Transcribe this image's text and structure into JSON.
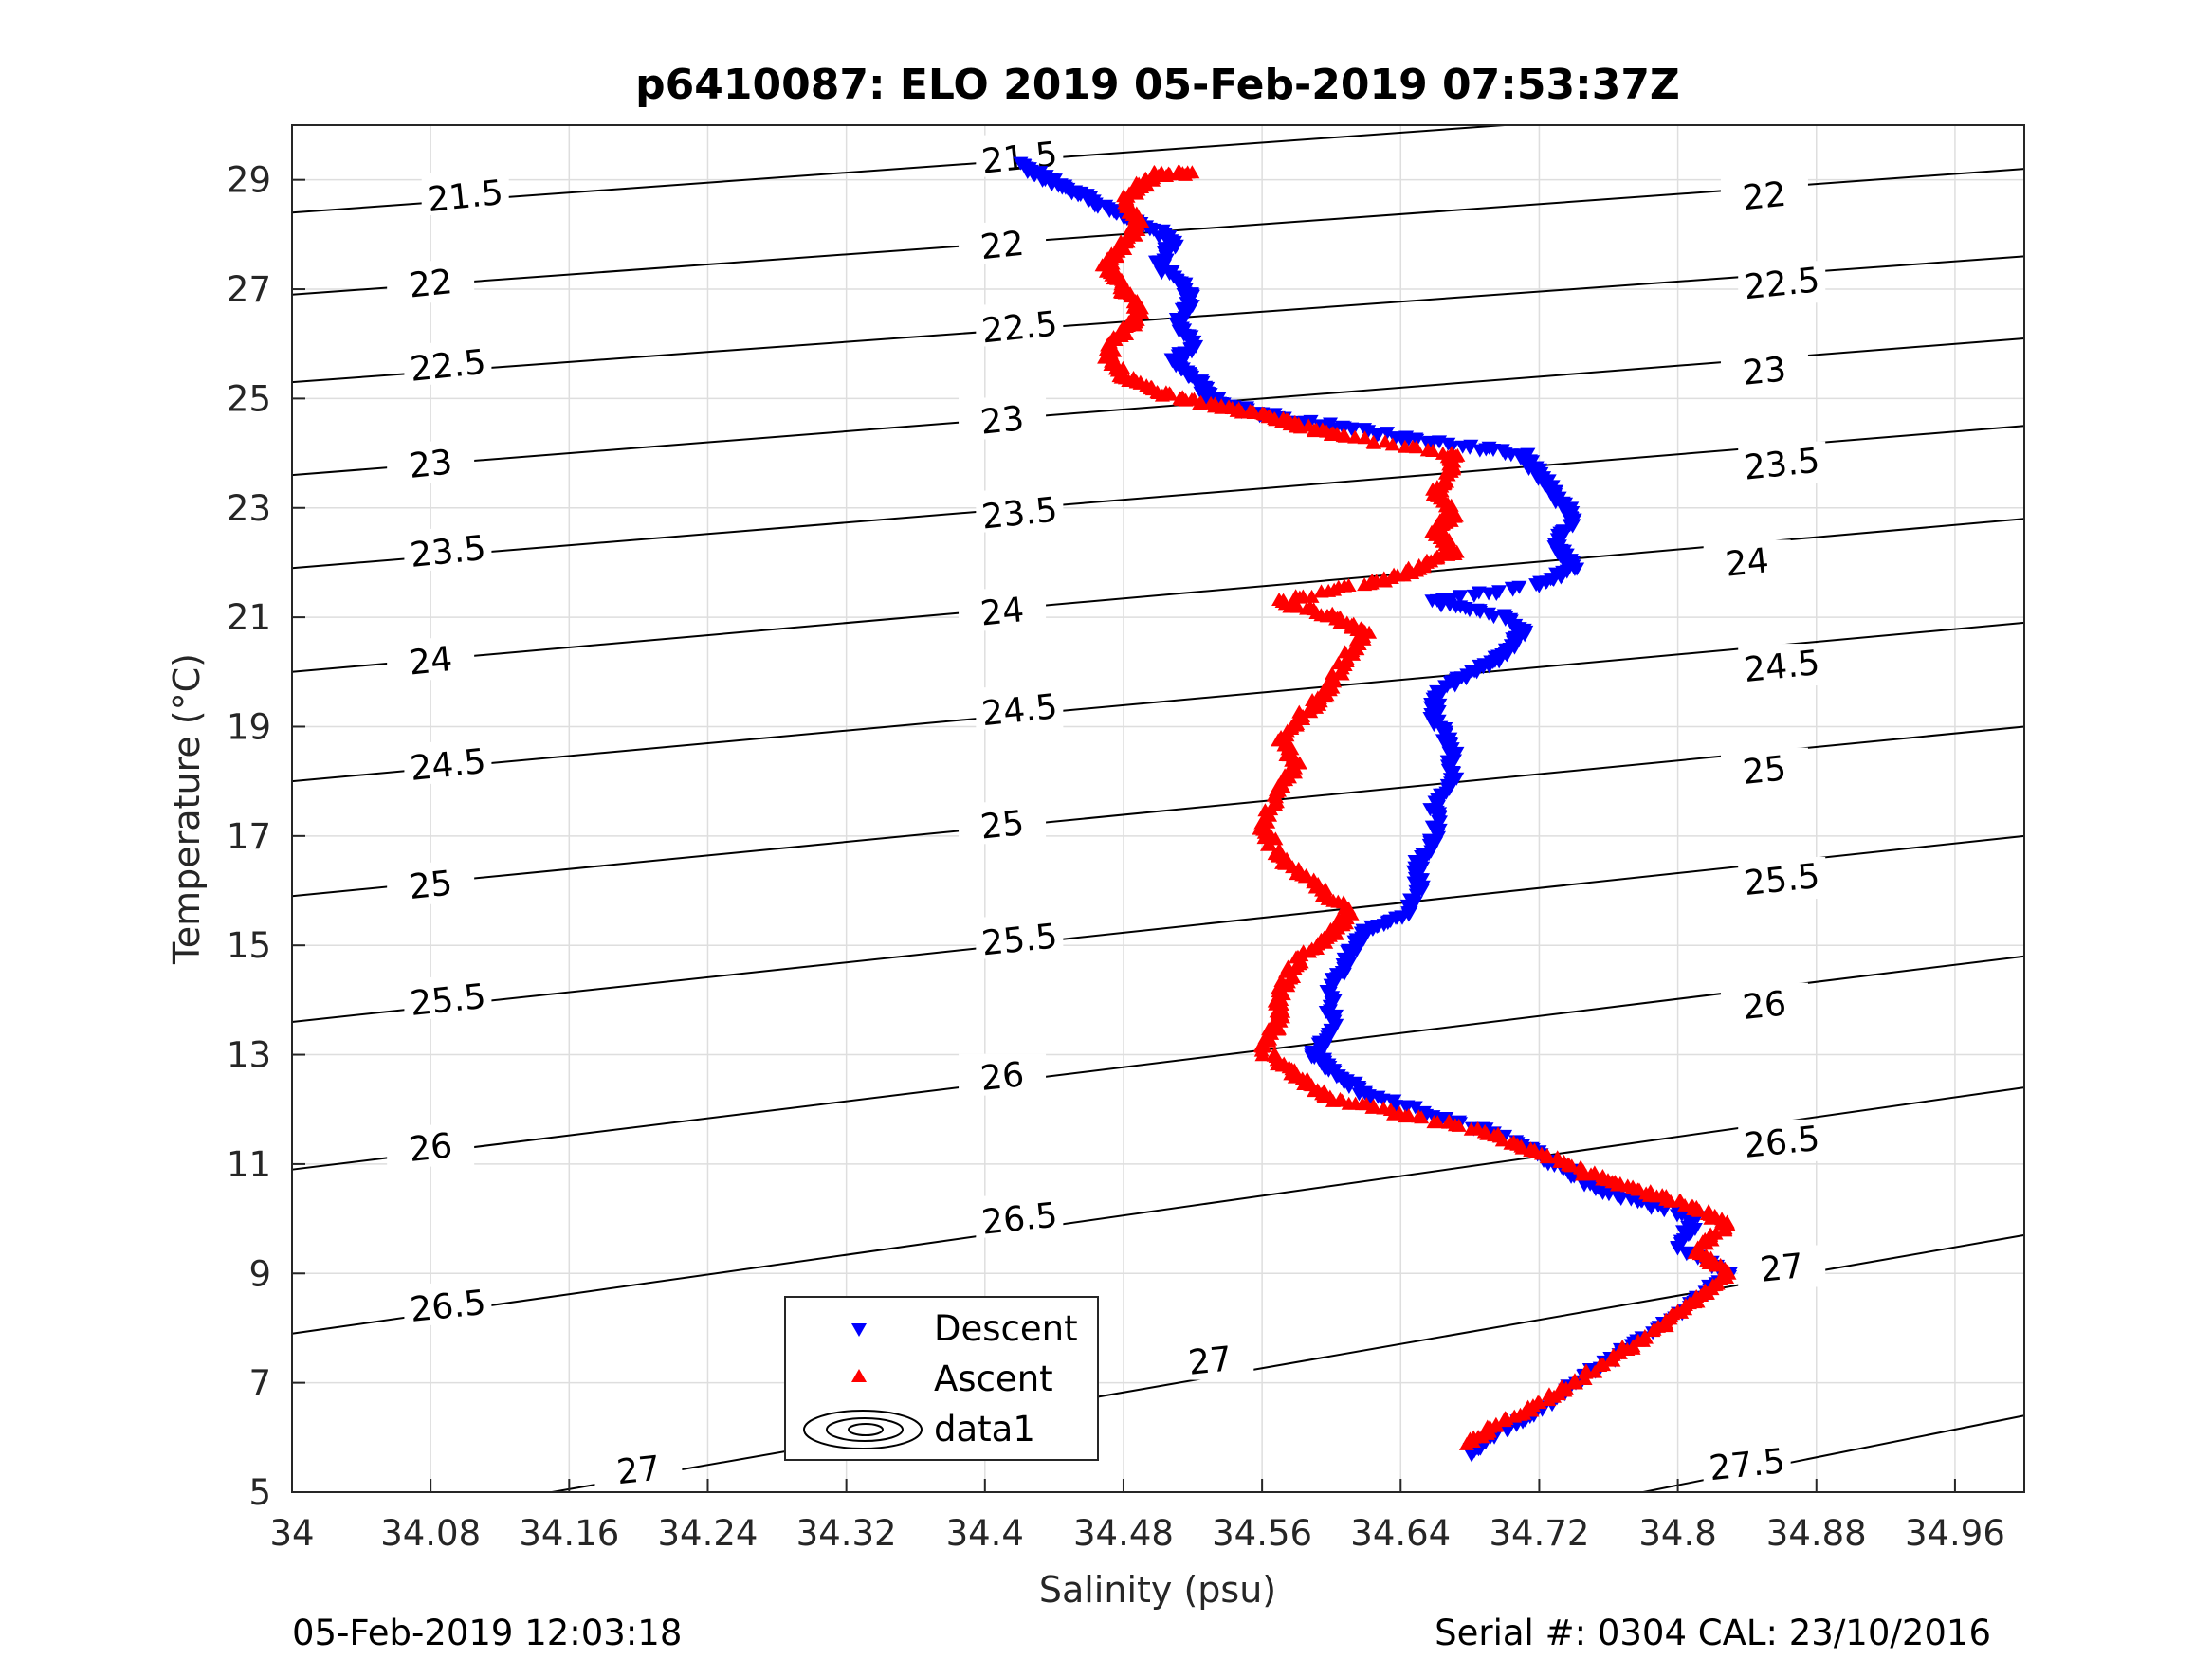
{
  "chart_data": {
    "type": "scatter",
    "title": "p6410087: ELO 2019 05-Feb-2019 07:53:37Z",
    "xlabel": "Salinity (psu)",
    "ylabel": "Temperature (°C)",
    "xlim": [
      34,
      35.0
    ],
    "ylim": [
      5,
      30
    ],
    "xticks": [
      "34",
      "34.08",
      "34.16",
      "34.24",
      "34.32",
      "34.4",
      "34.48",
      "34.56",
      "34.64",
      "34.72",
      "34.8",
      "34.88",
      "34.96"
    ],
    "xtick_values": [
      34,
      34.08,
      34.16,
      34.24,
      34.32,
      34.4,
      34.48,
      34.56,
      34.64,
      34.72,
      34.8,
      34.88,
      34.96
    ],
    "yticks": [
      "5",
      "7",
      "9",
      "11",
      "13",
      "15",
      "17",
      "19",
      "21",
      "23",
      "25",
      "27",
      "29"
    ],
    "ytick_values": [
      5,
      7,
      9,
      11,
      13,
      15,
      17,
      19,
      21,
      23,
      25,
      27,
      29
    ],
    "grid": true,
    "legend_position": "bottom-center",
    "legend": [
      {
        "label": "Descent",
        "marker": "triangle-down",
        "color": "#0000ff"
      },
      {
        "label": "Ascent",
        "marker": "triangle-up",
        "color": "#ff0000"
      },
      {
        "label": "data1",
        "marker": "contour",
        "color": "#000000"
      }
    ],
    "density_contours": {
      "levels": [
        "21.5",
        "22",
        "22.5",
        "23",
        "23.5",
        "24",
        "24.5",
        "25",
        "25.5",
        "26",
        "26.5",
        "27",
        "27.5"
      ],
      "lines": [
        {
          "label": "21.5",
          "points": [
            [
              34.0,
              28.4
            ],
            [
              34.7,
              30.0
            ]
          ]
        },
        {
          "label": "22",
          "points": [
            [
              34.0,
              26.9
            ],
            [
              35.0,
              29.2
            ]
          ]
        },
        {
          "label": "22.5",
          "points": [
            [
              34.0,
              25.3
            ],
            [
              35.0,
              27.6
            ]
          ]
        },
        {
          "label": "23",
          "points": [
            [
              34.0,
              23.6
            ],
            [
              35.0,
              26.1
            ]
          ]
        },
        {
          "label": "23.5",
          "points": [
            [
              34.0,
              21.9
            ],
            [
              35.0,
              24.5
            ]
          ]
        },
        {
          "label": "24",
          "points": [
            [
              34.0,
              20.0
            ],
            [
              35.0,
              22.8
            ]
          ]
        },
        {
          "label": "24.5",
          "points": [
            [
              34.0,
              18.0
            ],
            [
              35.0,
              20.9
            ]
          ]
        },
        {
          "label": "25",
          "points": [
            [
              34.0,
              15.9
            ],
            [
              35.0,
              19.0
            ]
          ]
        },
        {
          "label": "25.5",
          "points": [
            [
              34.0,
              13.6
            ],
            [
              35.0,
              17.0
            ]
          ]
        },
        {
          "label": "26",
          "points": [
            [
              34.0,
              10.9
            ],
            [
              35.0,
              14.8
            ]
          ]
        },
        {
          "label": "26.5",
          "points": [
            [
              34.0,
              7.9
            ],
            [
              35.0,
              12.4
            ]
          ]
        },
        {
          "label": "27",
          "points": [
            [
              34.15,
              5.0
            ],
            [
              35.0,
              9.7
            ]
          ]
        },
        {
          "label": "27.5",
          "points": [
            [
              34.78,
              5.0
            ],
            [
              35.0,
              6.4
            ]
          ]
        }
      ],
      "label_positions": [
        {
          "label": "21.5",
          "s": 34.1,
          "t": 28.7
        },
        {
          "label": "21.5",
          "s": 34.42,
          "t": 29.4
        },
        {
          "label": "22",
          "s": 34.08,
          "t": 27.1
        },
        {
          "label": "22",
          "s": 34.41,
          "t": 27.8
        },
        {
          "label": "22",
          "s": 34.85,
          "t": 28.7
        },
        {
          "label": "22.5",
          "s": 34.09,
          "t": 25.6
        },
        {
          "label": "22.5",
          "s": 34.42,
          "t": 26.3
        },
        {
          "label": "22.5",
          "s": 34.86,
          "t": 27.1
        },
        {
          "label": "23",
          "s": 34.08,
          "t": 23.8
        },
        {
          "label": "23",
          "s": 34.41,
          "t": 24.6
        },
        {
          "label": "23",
          "s": 34.85,
          "t": 25.5
        },
        {
          "label": "23.5",
          "s": 34.09,
          "t": 22.2
        },
        {
          "label": "23.5",
          "s": 34.42,
          "t": 22.9
        },
        {
          "label": "23.5",
          "s": 34.86,
          "t": 23.8
        },
        {
          "label": "24",
          "s": 34.08,
          "t": 20.2
        },
        {
          "label": "24",
          "s": 34.41,
          "t": 21.1
        },
        {
          "label": "24",
          "s": 34.84,
          "t": 22.0
        },
        {
          "label": "24.5",
          "s": 34.09,
          "t": 18.3
        },
        {
          "label": "24.5",
          "s": 34.42,
          "t": 19.3
        },
        {
          "label": "24.5",
          "s": 34.86,
          "t": 20.1
        },
        {
          "label": "25",
          "s": 34.08,
          "t": 16.1
        },
        {
          "label": "25",
          "s": 34.41,
          "t": 17.2
        },
        {
          "label": "25",
          "s": 34.85,
          "t": 18.2
        },
        {
          "label": "25.5",
          "s": 34.09,
          "t": 14.0
        },
        {
          "label": "25.5",
          "s": 34.42,
          "t": 15.1
        },
        {
          "label": "25.5",
          "s": 34.86,
          "t": 16.2
        },
        {
          "label": "26",
          "s": 34.08,
          "t": 11.3
        },
        {
          "label": "26",
          "s": 34.41,
          "t": 12.6
        },
        {
          "label": "26",
          "s": 34.85,
          "t": 13.9
        },
        {
          "label": "26.5",
          "s": 34.09,
          "t": 8.4
        },
        {
          "label": "26.5",
          "s": 34.42,
          "t": 10.0
        },
        {
          "label": "26.5",
          "s": 34.86,
          "t": 11.4
        },
        {
          "label": "27",
          "s": 34.2,
          "t": 5.4
        },
        {
          "label": "27",
          "s": 34.53,
          "t": 7.4
        },
        {
          "label": "27",
          "s": 34.86,
          "t": 9.1
        },
        {
          "label": "27.5",
          "s": 34.84,
          "t": 5.5
        }
      ]
    },
    "series": [
      {
        "name": "Descent",
        "marker": "triangle-down",
        "color": "#0000ff",
        "path": [
          [
            34.68,
            5.7
          ],
          [
            34.69,
            6.0
          ],
          [
            34.72,
            6.5
          ],
          [
            34.75,
            7.2
          ],
          [
            34.78,
            7.8
          ],
          [
            34.81,
            8.5
          ],
          [
            34.83,
            9.0
          ],
          [
            34.8,
            9.5
          ],
          [
            34.81,
            10.0
          ],
          [
            34.78,
            10.3
          ],
          [
            34.75,
            10.6
          ],
          [
            34.73,
            11.0
          ],
          [
            34.7,
            11.5
          ],
          [
            34.66,
            11.9
          ],
          [
            34.62,
            12.3
          ],
          [
            34.6,
            12.7
          ],
          [
            34.59,
            13.0
          ],
          [
            34.6,
            13.5
          ],
          [
            34.6,
            14.2
          ],
          [
            34.61,
            14.8
          ],
          [
            34.62,
            15.3
          ],
          [
            34.64,
            15.5
          ],
          [
            34.65,
            16.0
          ],
          [
            34.65,
            16.5
          ],
          [
            34.66,
            17.0
          ],
          [
            34.66,
            17.5
          ],
          [
            34.67,
            18.0
          ],
          [
            34.67,
            18.6
          ],
          [
            34.66,
            19.2
          ],
          [
            34.66,
            19.6
          ],
          [
            34.68,
            20.0
          ],
          [
            34.7,
            20.3
          ],
          [
            34.71,
            20.7
          ],
          [
            34.7,
            21.0
          ],
          [
            34.66,
            21.3
          ],
          [
            34.72,
            21.6
          ],
          [
            34.74,
            21.9
          ],
          [
            34.73,
            22.3
          ],
          [
            34.74,
            22.8
          ],
          [
            34.73,
            23.2
          ],
          [
            34.72,
            23.6
          ],
          [
            34.71,
            24.0
          ],
          [
            34.66,
            24.2
          ],
          [
            34.62,
            24.4
          ],
          [
            34.58,
            24.6
          ],
          [
            34.55,
            24.8
          ],
          [
            34.53,
            25.0
          ],
          [
            34.52,
            25.4
          ],
          [
            34.51,
            25.7
          ],
          [
            34.52,
            26.0
          ],
          [
            34.51,
            26.4
          ],
          [
            34.52,
            26.8
          ],
          [
            34.51,
            27.2
          ],
          [
            34.5,
            27.5
          ],
          [
            34.51,
            27.9
          ],
          [
            34.49,
            28.2
          ],
          [
            34.47,
            28.5
          ],
          [
            34.45,
            28.8
          ],
          [
            34.43,
            29.1
          ],
          [
            34.42,
            29.3
          ]
        ]
      },
      {
        "name": "Ascent",
        "marker": "triangle-up",
        "color": "#ff0000",
        "path": [
          [
            34.68,
            5.9
          ],
          [
            34.7,
            6.3
          ],
          [
            34.73,
            6.8
          ],
          [
            34.76,
            7.4
          ],
          [
            34.79,
            8.0
          ],
          [
            34.81,
            8.5
          ],
          [
            34.83,
            9.0
          ],
          [
            34.81,
            9.4
          ],
          [
            34.83,
            9.9
          ],
          [
            34.81,
            10.2
          ],
          [
            34.78,
            10.5
          ],
          [
            34.75,
            10.8
          ],
          [
            34.72,
            11.2
          ],
          [
            34.69,
            11.6
          ],
          [
            34.64,
            11.9
          ],
          [
            34.6,
            12.2
          ],
          [
            34.58,
            12.6
          ],
          [
            34.56,
            13.1
          ],
          [
            34.57,
            13.6
          ],
          [
            34.57,
            14.1
          ],
          [
            34.58,
            14.7
          ],
          [
            34.6,
            15.2
          ],
          [
            34.61,
            15.6
          ],
          [
            34.59,
            16.1
          ],
          [
            34.57,
            16.6
          ],
          [
            34.56,
            17.2
          ],
          [
            34.57,
            17.8
          ],
          [
            34.58,
            18.3
          ],
          [
            34.57,
            18.8
          ],
          [
            34.59,
            19.4
          ],
          [
            34.6,
            19.8
          ],
          [
            34.61,
            20.3
          ],
          [
            34.62,
            20.7
          ],
          [
            34.6,
            21.0
          ],
          [
            34.57,
            21.3
          ],
          [
            34.62,
            21.6
          ],
          [
            34.65,
            21.9
          ],
          [
            34.67,
            22.2
          ],
          [
            34.66,
            22.6
          ],
          [
            34.67,
            22.9
          ],
          [
            34.66,
            23.3
          ],
          [
            34.67,
            23.7
          ],
          [
            34.67,
            24.0
          ],
          [
            34.61,
            24.3
          ],
          [
            34.58,
            24.5
          ],
          [
            34.56,
            24.7
          ],
          [
            34.53,
            24.9
          ],
          [
            34.5,
            25.1
          ],
          [
            34.48,
            25.4
          ],
          [
            34.47,
            25.8
          ],
          [
            34.48,
            26.2
          ],
          [
            34.49,
            26.6
          ],
          [
            34.48,
            27.0
          ],
          [
            34.47,
            27.4
          ],
          [
            34.48,
            27.8
          ],
          [
            34.49,
            28.2
          ],
          [
            34.48,
            28.6
          ],
          [
            34.49,
            28.9
          ],
          [
            34.5,
            29.1
          ],
          [
            34.52,
            29.1
          ]
        ]
      }
    ]
  },
  "footer": {
    "left": "05-Feb-2019 12:03:18",
    "right": "Serial #: 0304  CAL: 23/10/2016"
  }
}
